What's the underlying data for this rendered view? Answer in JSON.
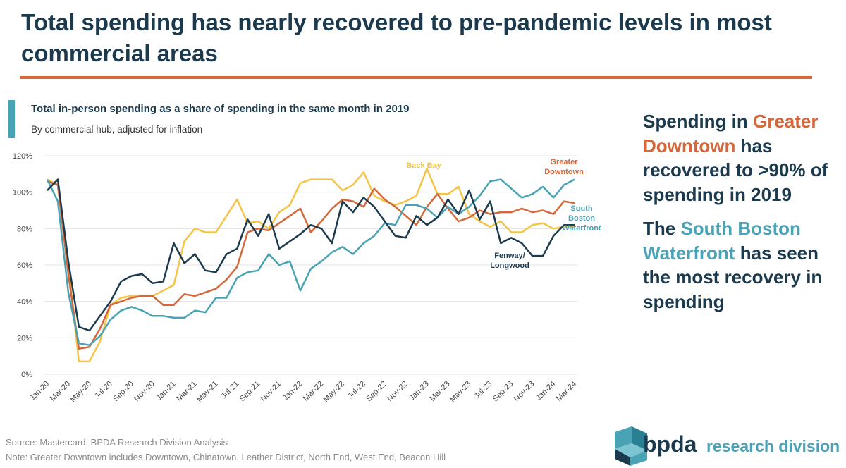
{
  "chart_data": {
    "type": "line",
    "title": "Total spending has nearly recovered to pre-pandemic levels in most commercial areas",
    "subtitle": "Total in-person spending as a share of spending in the same month in 2019",
    "subtitle2": "By commercial hub, adjusted for inflation",
    "categories": [
      "Jan-20",
      null,
      "Mar-20",
      null,
      "May-20",
      null,
      "Jul-20",
      null,
      "Sep-20",
      null,
      "Nov-20",
      null,
      "Jan-21",
      null,
      "Mar-21",
      null,
      "May-21",
      null,
      "Jul-21",
      null,
      "Sep-21",
      null,
      "Nov-21",
      null,
      "Jan-22",
      null,
      "Mar-22",
      null,
      "May-22",
      null,
      "Jul-22",
      null,
      "Sep-22",
      null,
      "Nov-22",
      null,
      "Jan-23",
      null,
      "Mar-23",
      null,
      "May-23",
      null,
      "Jul-23",
      null,
      "Sep-23",
      null,
      "Nov-23",
      null,
      "Jan-24",
      null,
      "Mar-24"
    ],
    "ylim": [
      0,
      120
    ],
    "yticks": [
      {
        "value": 0,
        "label": "0%"
      },
      {
        "value": 20,
        "label": "20%"
      },
      {
        "value": 40,
        "label": "40%"
      },
      {
        "value": 60,
        "label": "60%"
      },
      {
        "value": 80,
        "label": "80%"
      },
      {
        "value": 100,
        "label": "100%"
      },
      {
        "value": 120,
        "label": "120%"
      }
    ],
    "grid": true,
    "series": [
      {
        "name": "Back Bay",
        "color": "#f5c445",
        "values": [
          107,
          104,
          60,
          7,
          7,
          18,
          38,
          42,
          43,
          43,
          43,
          46,
          49,
          73,
          80,
          78,
          78,
          87,
          96,
          83,
          84,
          80,
          89,
          93,
          105,
          107,
          107,
          107,
          101,
          104,
          111,
          98,
          95,
          93,
          95,
          98,
          113,
          99,
          99,
          103,
          88,
          84,
          81,
          84,
          78,
          78,
          82,
          83,
          80,
          81,
          81
        ]
      },
      {
        "name": "Greater Downtown",
        "color": "#d4683a",
        "values": [
          106,
          104,
          55,
          14,
          15,
          25,
          38,
          40,
          42,
          43,
          43,
          38,
          38,
          44,
          43,
          45,
          47,
          52,
          59,
          78,
          80,
          79,
          83,
          87,
          91,
          78,
          84,
          91,
          96,
          95,
          92,
          102,
          96,
          92,
          87,
          82,
          92,
          99,
          91,
          84,
          86,
          90,
          88,
          89,
          89,
          91,
          89,
          90,
          88,
          95,
          94
        ]
      },
      {
        "name": "South Boston Waterfront",
        "color": "#4aa3b5",
        "values": [
          107,
          95,
          45,
          17,
          16,
          21,
          30,
          35,
          37,
          35,
          32,
          32,
          31,
          31,
          35,
          34,
          42,
          42,
          53,
          56,
          57,
          66,
          60,
          62,
          46,
          58,
          62,
          67,
          70,
          66,
          72,
          76,
          83,
          82,
          93,
          93,
          91,
          86,
          92,
          88,
          92,
          98,
          106,
          107,
          102,
          97,
          99,
          103,
          97,
          104,
          107
        ]
      },
      {
        "name": "Fenway/ Longwood",
        "color": "#1c3a4e",
        "values": [
          101,
          107,
          62,
          26,
          24,
          32,
          40,
          51,
          54,
          55,
          50,
          51,
          72,
          61,
          66,
          57,
          56,
          66,
          69,
          85,
          76,
          88,
          69,
          73,
          77,
          82,
          80,
          72,
          95,
          89,
          97,
          92,
          84,
          76,
          75,
          87,
          82,
          86,
          96,
          88,
          101,
          85,
          95,
          72,
          75,
          72,
          65,
          65,
          76,
          82,
          82
        ]
      }
    ],
    "panel": [
      [
        {
          "text": "Spending in ",
          "color": "#1c3a4e"
        },
        {
          "text": "Greater Downtown",
          "color": "#d4683a"
        },
        {
          "text": " has recovered to >90% of spending in 2019",
          "color": "#1c3a4e"
        }
      ],
      [
        {
          "text": "The ",
          "color": "#1c3a4e"
        },
        {
          "text": "South Boston Waterfront",
          "color": "#4aa3b5"
        },
        {
          "text": " has seen the most recovery in spending",
          "color": "#1c3a4e"
        }
      ]
    ],
    "source": "Source: Mastercard, BPDA Research Division Analysis",
    "note": "Note: Greater Downtown includes Downtown, Chinatown, Leather District, North End, West End, Beacon Hill",
    "logo": "bpda",
    "logo_text": "research division"
  }
}
